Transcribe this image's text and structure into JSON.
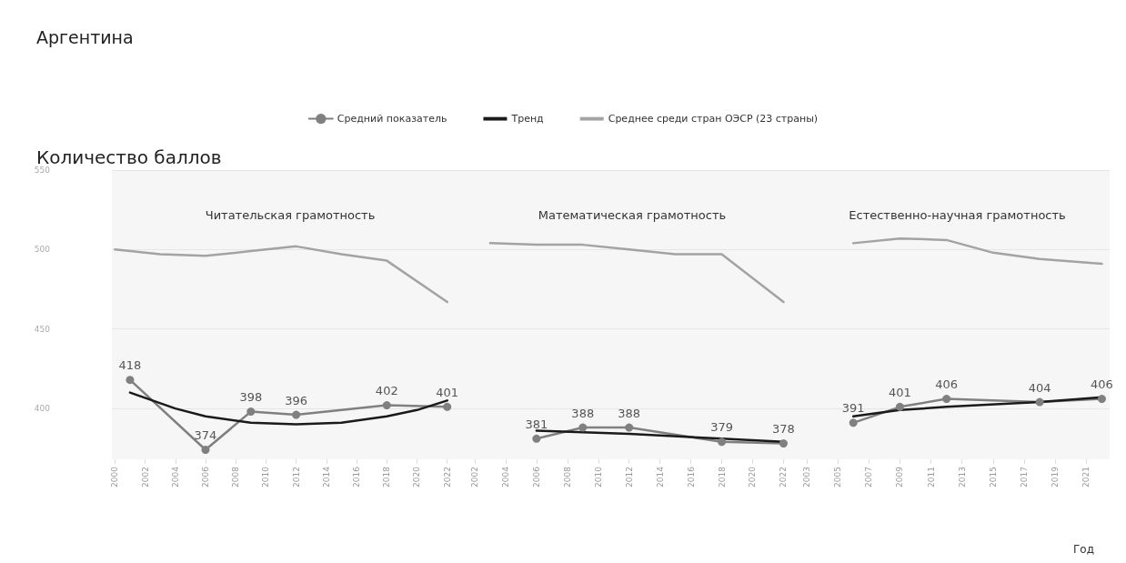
{
  "chart_data": [
    {
      "type": "line",
      "title": "Читательская грамотность",
      "annotations": [
        "Аргентина"
      ],
      "ylabel": "Количество баллов",
      "legend": "top",
      "grid": "y",
      "xlim": [
        1999.8,
        2022.8
      ],
      "ylim": [
        368,
        550
      ],
      "xticks": [
        2000,
        2002,
        2004,
        2006,
        2008,
        2010,
        2012,
        2014,
        2016,
        2018,
        2020,
        2022
      ],
      "yticks": [
        400,
        450,
        500,
        550
      ],
      "series": [
        {
          "name": "Средний показатель",
          "color": "#808080",
          "marker": "circle",
          "x": [
            2001,
            2006,
            2009,
            2012,
            2018,
            2022
          ],
          "values": [
            418,
            374,
            398,
            396,
            402,
            401
          ],
          "value_labels": [
            "418",
            "374",
            "398",
            "396",
            "402",
            "401"
          ]
        },
        {
          "name": "Тренд",
          "color": "#1a1a1a",
          "marker": "none",
          "x": [
            2001,
            2004,
            2006,
            2009,
            2012,
            2015,
            2018,
            2020,
            2022
          ],
          "values": [
            410,
            400,
            395,
            391,
            390,
            391,
            395,
            399,
            405
          ]
        },
        {
          "name": "Среднее среди стран ОЭСР (23 страны)",
          "color": "#a3a3a3",
          "marker": "none",
          "x": [
            2000,
            2003,
            2006,
            2009,
            2012,
            2015,
            2018,
            2022
          ],
          "values": [
            500,
            497,
            496,
            499,
            502,
            497,
            493,
            467
          ]
        }
      ]
    },
    {
      "type": "line",
      "title": "Математическая грамотность",
      "legend": false,
      "grid": "y",
      "tick_labels": "x",
      "xlim": [
        2001,
        2022.8
      ],
      "ylim": [
        368,
        550
      ],
      "xticks": [
        2002,
        2004,
        2006,
        2008,
        2010,
        2012,
        2014,
        2016,
        2018,
        2020,
        2022
      ],
      "yticks": [
        400,
        450,
        500,
        550
      ],
      "series": [
        {
          "color": "#808080",
          "marker": "circle",
          "x": [
            2006,
            2009,
            2012,
            2018,
            2022
          ],
          "values": [
            381,
            388,
            388,
            379,
            378
          ],
          "value_labels": [
            "381",
            "388",
            "388",
            "379",
            "378"
          ]
        },
        {
          "color": "#1a1a1a",
          "marker": "none",
          "x": [
            2006,
            2009,
            2012,
            2018,
            2022
          ],
          "values": [
            386,
            385,
            384,
            381,
            379
          ]
        },
        {
          "color": "#a3a3a3",
          "marker": "none",
          "x": [
            2003,
            2006,
            2009,
            2012,
            2015,
            2018,
            2022
          ],
          "values": [
            504,
            503,
            503,
            500,
            497,
            497,
            467
          ]
        }
      ]
    },
    {
      "type": "line",
      "title": "Естественно-научная грамотность",
      "xlabel": "Год",
      "legend": false,
      "grid": "y",
      "tick_labels": "x",
      "xlim": [
        2002.3,
        2022.5
      ],
      "ylim": [
        368,
        550
      ],
      "xticks": [
        2003,
        2005,
        2007,
        2009,
        2011,
        2013,
        2015,
        2017,
        2019,
        2021
      ],
      "yticks": [
        400,
        450,
        500,
        550
      ],
      "series": [
        {
          "color": "#808080",
          "marker": "circle",
          "x": [
            2006,
            2009,
            2012,
            2018,
            2022
          ],
          "values": [
            391,
            401,
            406,
            404,
            406
          ],
          "value_labels": [
            "391",
            "401",
            "406",
            "404",
            "406"
          ]
        },
        {
          "color": "#1a1a1a",
          "marker": "none",
          "x": [
            2006,
            2009,
            2012,
            2018,
            2022
          ],
          "values": [
            395,
            399,
            401,
            404,
            407
          ]
        },
        {
          "color": "#a3a3a3",
          "marker": "none",
          "x": [
            2006,
            2009,
            2012,
            2015,
            2018,
            2022
          ],
          "values": [
            504,
            507,
            506,
            498,
            494,
            491
          ]
        }
      ]
    }
  ]
}
